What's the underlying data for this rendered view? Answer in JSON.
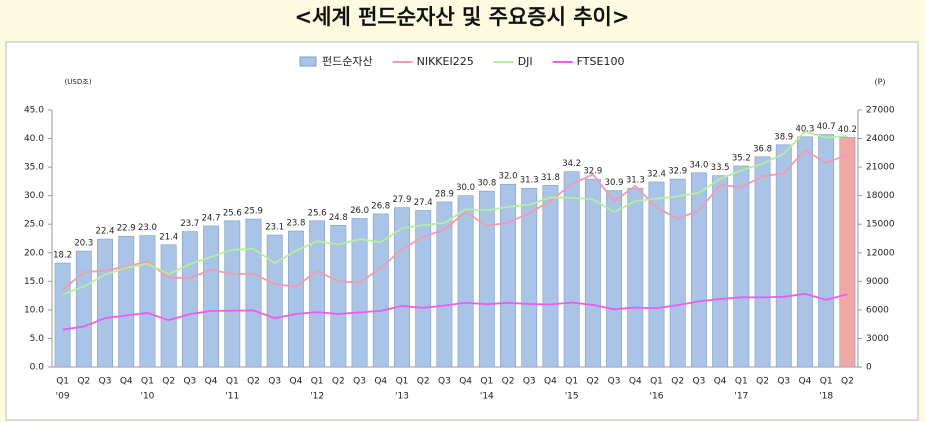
{
  "chart_data": {
    "type": "combo",
    "title": "<세계 펀드순자산 및 주요증시 추이>",
    "ylabel": "(USD조)",
    "y2label": "(P)",
    "categories": [
      "Q1",
      "Q2",
      "Q3",
      "Q4",
      "Q1",
      "Q2",
      "Q3",
      "Q4",
      "Q1",
      "Q2",
      "Q3",
      "Q4",
      "Q1",
      "Q2",
      "Q3",
      "Q4",
      "Q1",
      "Q2",
      "Q3",
      "Q4",
      "Q1",
      "Q2",
      "Q3",
      "Q4",
      "Q1",
      "Q2",
      "Q3",
      "Q4",
      "Q1",
      "Q2",
      "Q3",
      "Q4",
      "Q1",
      "Q2",
      "Q3",
      "Q4",
      "Q1",
      "Q2"
    ],
    "category_years": [
      "'09",
      null,
      null,
      null,
      "'10",
      null,
      null,
      null,
      "'11",
      null,
      null,
      null,
      "'12",
      null,
      null,
      null,
      "'13",
      null,
      null,
      null,
      "'14",
      null,
      null,
      null,
      "'15",
      null,
      null,
      null,
      "'16",
      null,
      null,
      null,
      "'17",
      null,
      null,
      null,
      "'18",
      null
    ],
    "ylim": [
      0,
      45
    ],
    "yticks": [
      {
        "value": 0,
        "label": "0.0"
      },
      {
        "value": 5,
        "label": "5.0"
      },
      {
        "value": 10,
        "label": "10.0"
      },
      {
        "value": 15,
        "label": "15.0"
      },
      {
        "value": 20,
        "label": "20.0"
      },
      {
        "value": 25,
        "label": "25.0"
      },
      {
        "value": 30,
        "label": "30.0"
      },
      {
        "value": 35,
        "label": "35.0"
      },
      {
        "value": 40,
        "label": "40.0"
      },
      {
        "value": 45,
        "label": "45.0"
      }
    ],
    "y2lim": [
      0,
      27000
    ],
    "y2ticks": [
      0,
      3000,
      6000,
      9000,
      12000,
      15000,
      18000,
      21000,
      24000,
      27000
    ],
    "series": [
      {
        "name": "펀드순자산",
        "type": "bar",
        "axis": "y",
        "color": "#a9c4e6",
        "colors": [
          "#a9c4e6",
          "#a9c4e6",
          "#a9c4e6",
          "#a9c4e6",
          "#a9c4e6",
          "#a9c4e6",
          "#a9c4e6",
          "#a9c4e6",
          "#a9c4e6",
          "#a9c4e6",
          "#a9c4e6",
          "#a9c4e6",
          "#a9c4e6",
          "#a9c4e6",
          "#a9c4e6",
          "#a9c4e6",
          "#a9c4e6",
          "#a9c4e6",
          "#a9c4e6",
          "#a9c4e6",
          "#a9c4e6",
          "#a9c4e6",
          "#a9c4e6",
          "#a9c4e6",
          "#a9c4e6",
          "#a9c4e6",
          "#a9c4e6",
          "#a9c4e6",
          "#a9c4e6",
          "#a9c4e6",
          "#a9c4e6",
          "#a9c4e6",
          "#a9c4e6",
          "#a9c4e6",
          "#a9c4e6",
          "#a9c4e6",
          "#a9c4e6",
          "#f2a7a7"
        ],
        "values": [
          18.2,
          20.3,
          22.4,
          22.9,
          23.0,
          21.4,
          23.7,
          24.7,
          25.6,
          25.9,
          23.1,
          23.8,
          25.6,
          24.8,
          26.0,
          26.8,
          27.9,
          27.4,
          28.9,
          30.0,
          30.8,
          32.0,
          31.3,
          31.8,
          34.2,
          32.9,
          30.9,
          31.3,
          32.4,
          32.9,
          34.0,
          33.5,
          35.2,
          36.8,
          38.9,
          40.3,
          40.7,
          40.2
        ],
        "value_labels": [
          "18.2",
          "20.3",
          "22.4",
          "22.9",
          "23.0",
          "21.4",
          "23.7",
          "24.7",
          "25.6",
          "25.9",
          "23.1",
          "23.8",
          "25.6",
          "24.8",
          "26.0",
          "26.8",
          "27.9",
          "27.4",
          "28.9",
          "30.0",
          "30.8",
          "32.0",
          "31.3",
          "31.8",
          "34.2",
          "32.9",
          "30.9",
          "31.3",
          "32.4",
          "32.9",
          "34.0",
          "33.5",
          "35.2",
          "36.8",
          "38.9",
          "40.3",
          "40.7",
          "40.2"
        ]
      },
      {
        "name": "NIKKEI225",
        "type": "line",
        "axis": "y2",
        "color": "#f29bb0",
        "values": [
          8110,
          9958,
          10133,
          10546,
          11090,
          9383,
          9369,
          10229,
          9755,
          9816,
          8700,
          8455,
          10083,
          9007,
          8870,
          10395,
          12398,
          13677,
          14456,
          16291,
          14828,
          15162,
          16174,
          17451,
          19207,
          20236,
          17388,
          19034,
          16759,
          15576,
          16450,
          19114,
          18909,
          20033,
          20356,
          22765,
          21454,
          22305
        ]
      },
      {
        "name": "DJI",
        "type": "line",
        "axis": "y2",
        "color": "#b6ee9c",
        "values": [
          7609,
          8447,
          9712,
          10428,
          10857,
          9774,
          10788,
          11578,
          12320,
          12414,
          10913,
          12218,
          13212,
          12880,
          13437,
          13104,
          14579,
          14910,
          15130,
          16577,
          16458,
          16827,
          17043,
          17823,
          17776,
          17620,
          16285,
          17425,
          17685,
          17930,
          18308,
          19763,
          20663,
          21350,
          22405,
          24719,
          24103,
          24271
        ]
      },
      {
        "name": "FTSE100",
        "type": "line",
        "axis": "y2",
        "color": "#ee5cee",
        "values": [
          3926,
          4249,
          5134,
          5413,
          5680,
          4917,
          5549,
          5900,
          5909,
          5946,
          5128,
          5572,
          5768,
          5571,
          5742,
          5898,
          6412,
          6215,
          6462,
          6749,
          6598,
          6744,
          6623,
          6566,
          6773,
          6521,
          6062,
          6242,
          6175,
          6504,
          6899,
          7143,
          7323,
          7313,
          7373,
          7688,
          7057,
          7637
        ]
      }
    ]
  }
}
